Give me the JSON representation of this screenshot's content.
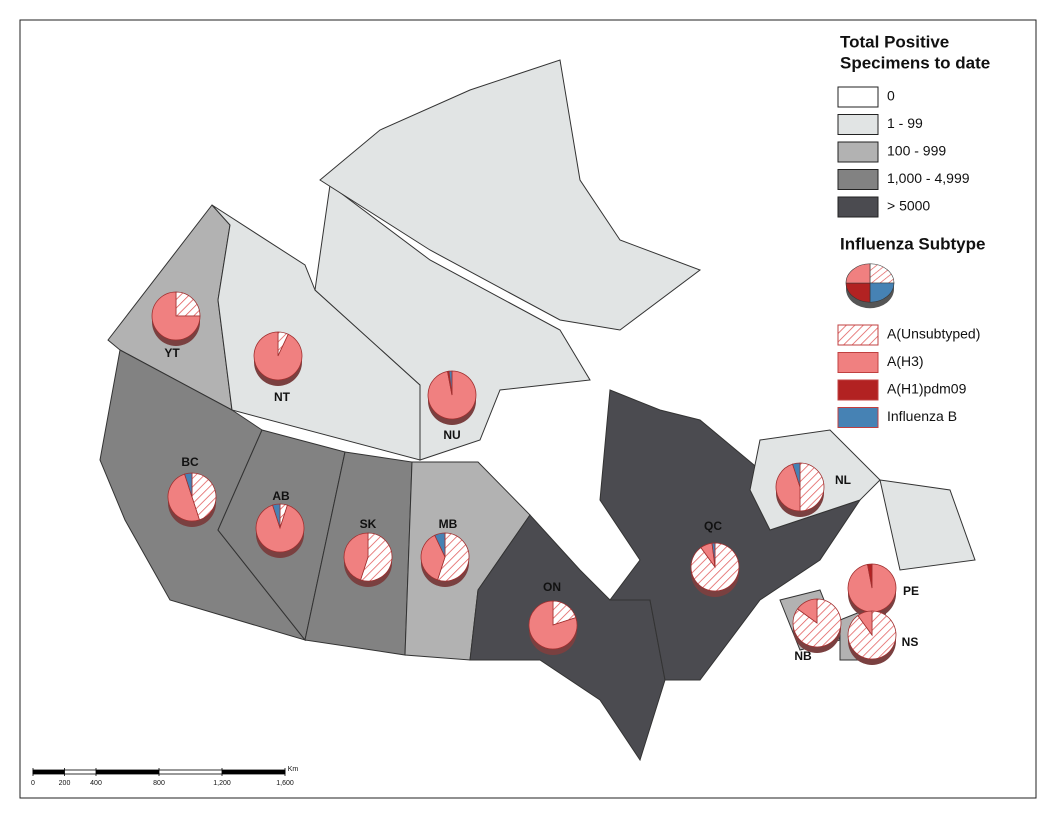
{
  "legend": {
    "title_lines": [
      "Total Positive",
      "Specimens to date"
    ],
    "classes": [
      {
        "label": "0",
        "color": "#ffffff"
      },
      {
        "label": "1 - 99",
        "color": "#e1e4e4"
      },
      {
        "label": "100 - 999",
        "color": "#b2b2b2"
      },
      {
        "label": "1,000 - 4,999",
        "color": "#828282"
      },
      {
        "label": "> 5000",
        "color": "#4b4b50"
      }
    ],
    "subtype_title": "Influenza Subtype",
    "subtypes": [
      {
        "label": "A(Unsubtyped)",
        "color": "#f08080",
        "pattern": "hatch"
      },
      {
        "label": "A(H3)",
        "color": "#f08080"
      },
      {
        "label": "A(H1)pdm09",
        "color": "#b22222"
      },
      {
        "label": "Influenza B",
        "color": "#4682b4"
      }
    ]
  },
  "regions": [
    {
      "label": "YT",
      "class": 2,
      "shares": [
        25,
        75,
        0,
        0
      ]
    },
    {
      "label": "NT",
      "class": 1,
      "shares": [
        7,
        93,
        0,
        0
      ]
    },
    {
      "label": "NU",
      "class": 1,
      "shares": [
        0,
        97,
        1,
        2
      ]
    },
    {
      "label": "BC",
      "class": 3,
      "shares": [
        45,
        50,
        0,
        5
      ]
    },
    {
      "label": "AB",
      "class": 3,
      "shares": [
        5,
        90,
        0,
        5
      ]
    },
    {
      "label": "SK",
      "class": 3,
      "shares": [
        55,
        45,
        0,
        0
      ]
    },
    {
      "label": "MB",
      "class": 2,
      "shares": [
        55,
        38,
        0,
        7
      ]
    },
    {
      "label": "ON",
      "class": 4,
      "shares": [
        20,
        80,
        0,
        0
      ]
    },
    {
      "label": "QC",
      "class": 4,
      "shares": [
        90,
        8,
        0,
        2
      ]
    },
    {
      "label": "NL",
      "class": 1,
      "shares": [
        50,
        45,
        0,
        5
      ]
    },
    {
      "label": "PE",
      "class": 1,
      "shares": [
        0,
        97,
        3,
        0
      ]
    },
    {
      "label": "NB",
      "class": 2,
      "shares": [
        85,
        15,
        0,
        0
      ]
    },
    {
      "label": "NS",
      "class": 2,
      "shares": [
        90,
        10,
        0,
        0
      ]
    }
  ],
  "scale": {
    "unit": "Km",
    "ticks": [
      0,
      200,
      400,
      800,
      {
        "value": 1200,
        "label": "1,200"
      },
      {
        "value": 1600,
        "label": "1,600"
      }
    ]
  }
}
